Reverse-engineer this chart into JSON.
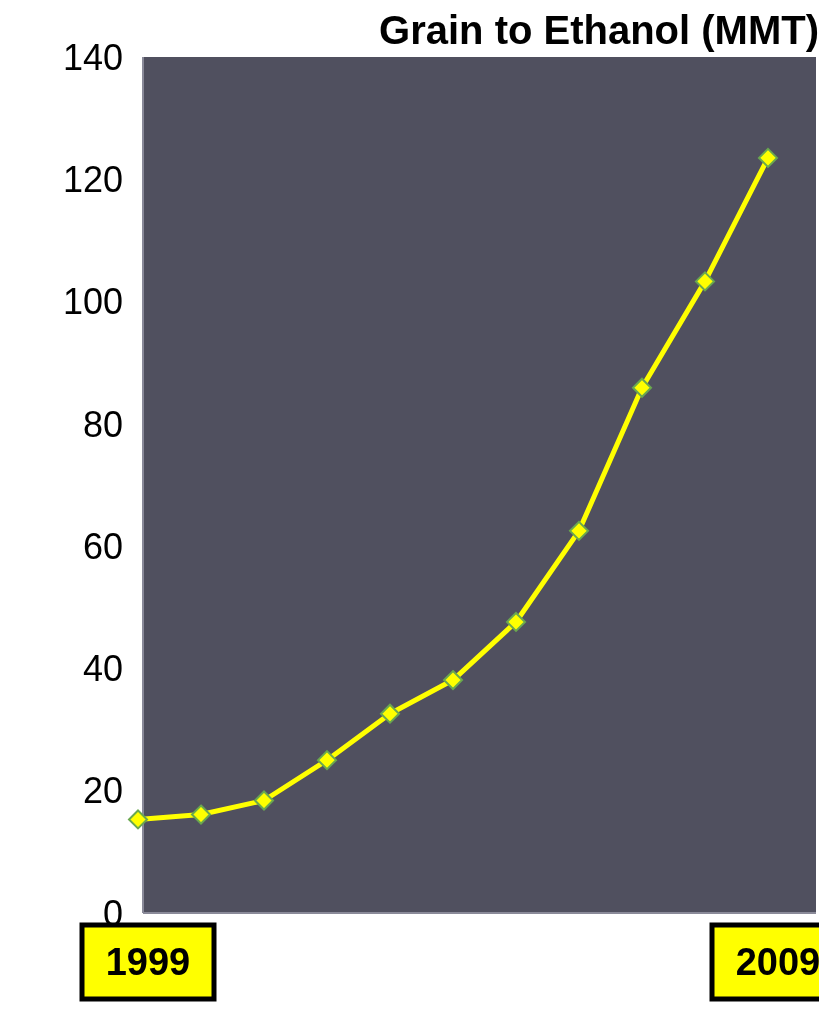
{
  "chart_data": {
    "type": "line",
    "title": "Grain to Ethanol (MMT)",
    "categories": [
      "1999",
      null,
      null,
      null,
      null,
      null,
      null,
      null,
      null,
      null,
      "2009"
    ],
    "series": [
      {
        "color": "#ffff00",
        "values": [
          15.3,
          16.1,
          18.4,
          25,
          32.6,
          38.1,
          47.6,
          62.5,
          85.9,
          103.3,
          123.5
        ]
      }
    ],
    "ylim": [
      0,
      140
    ],
    "yticks": [
      0,
      20,
      40,
      60,
      80,
      100,
      120,
      140
    ],
    "marker": "diamond",
    "grid": false
  }
}
